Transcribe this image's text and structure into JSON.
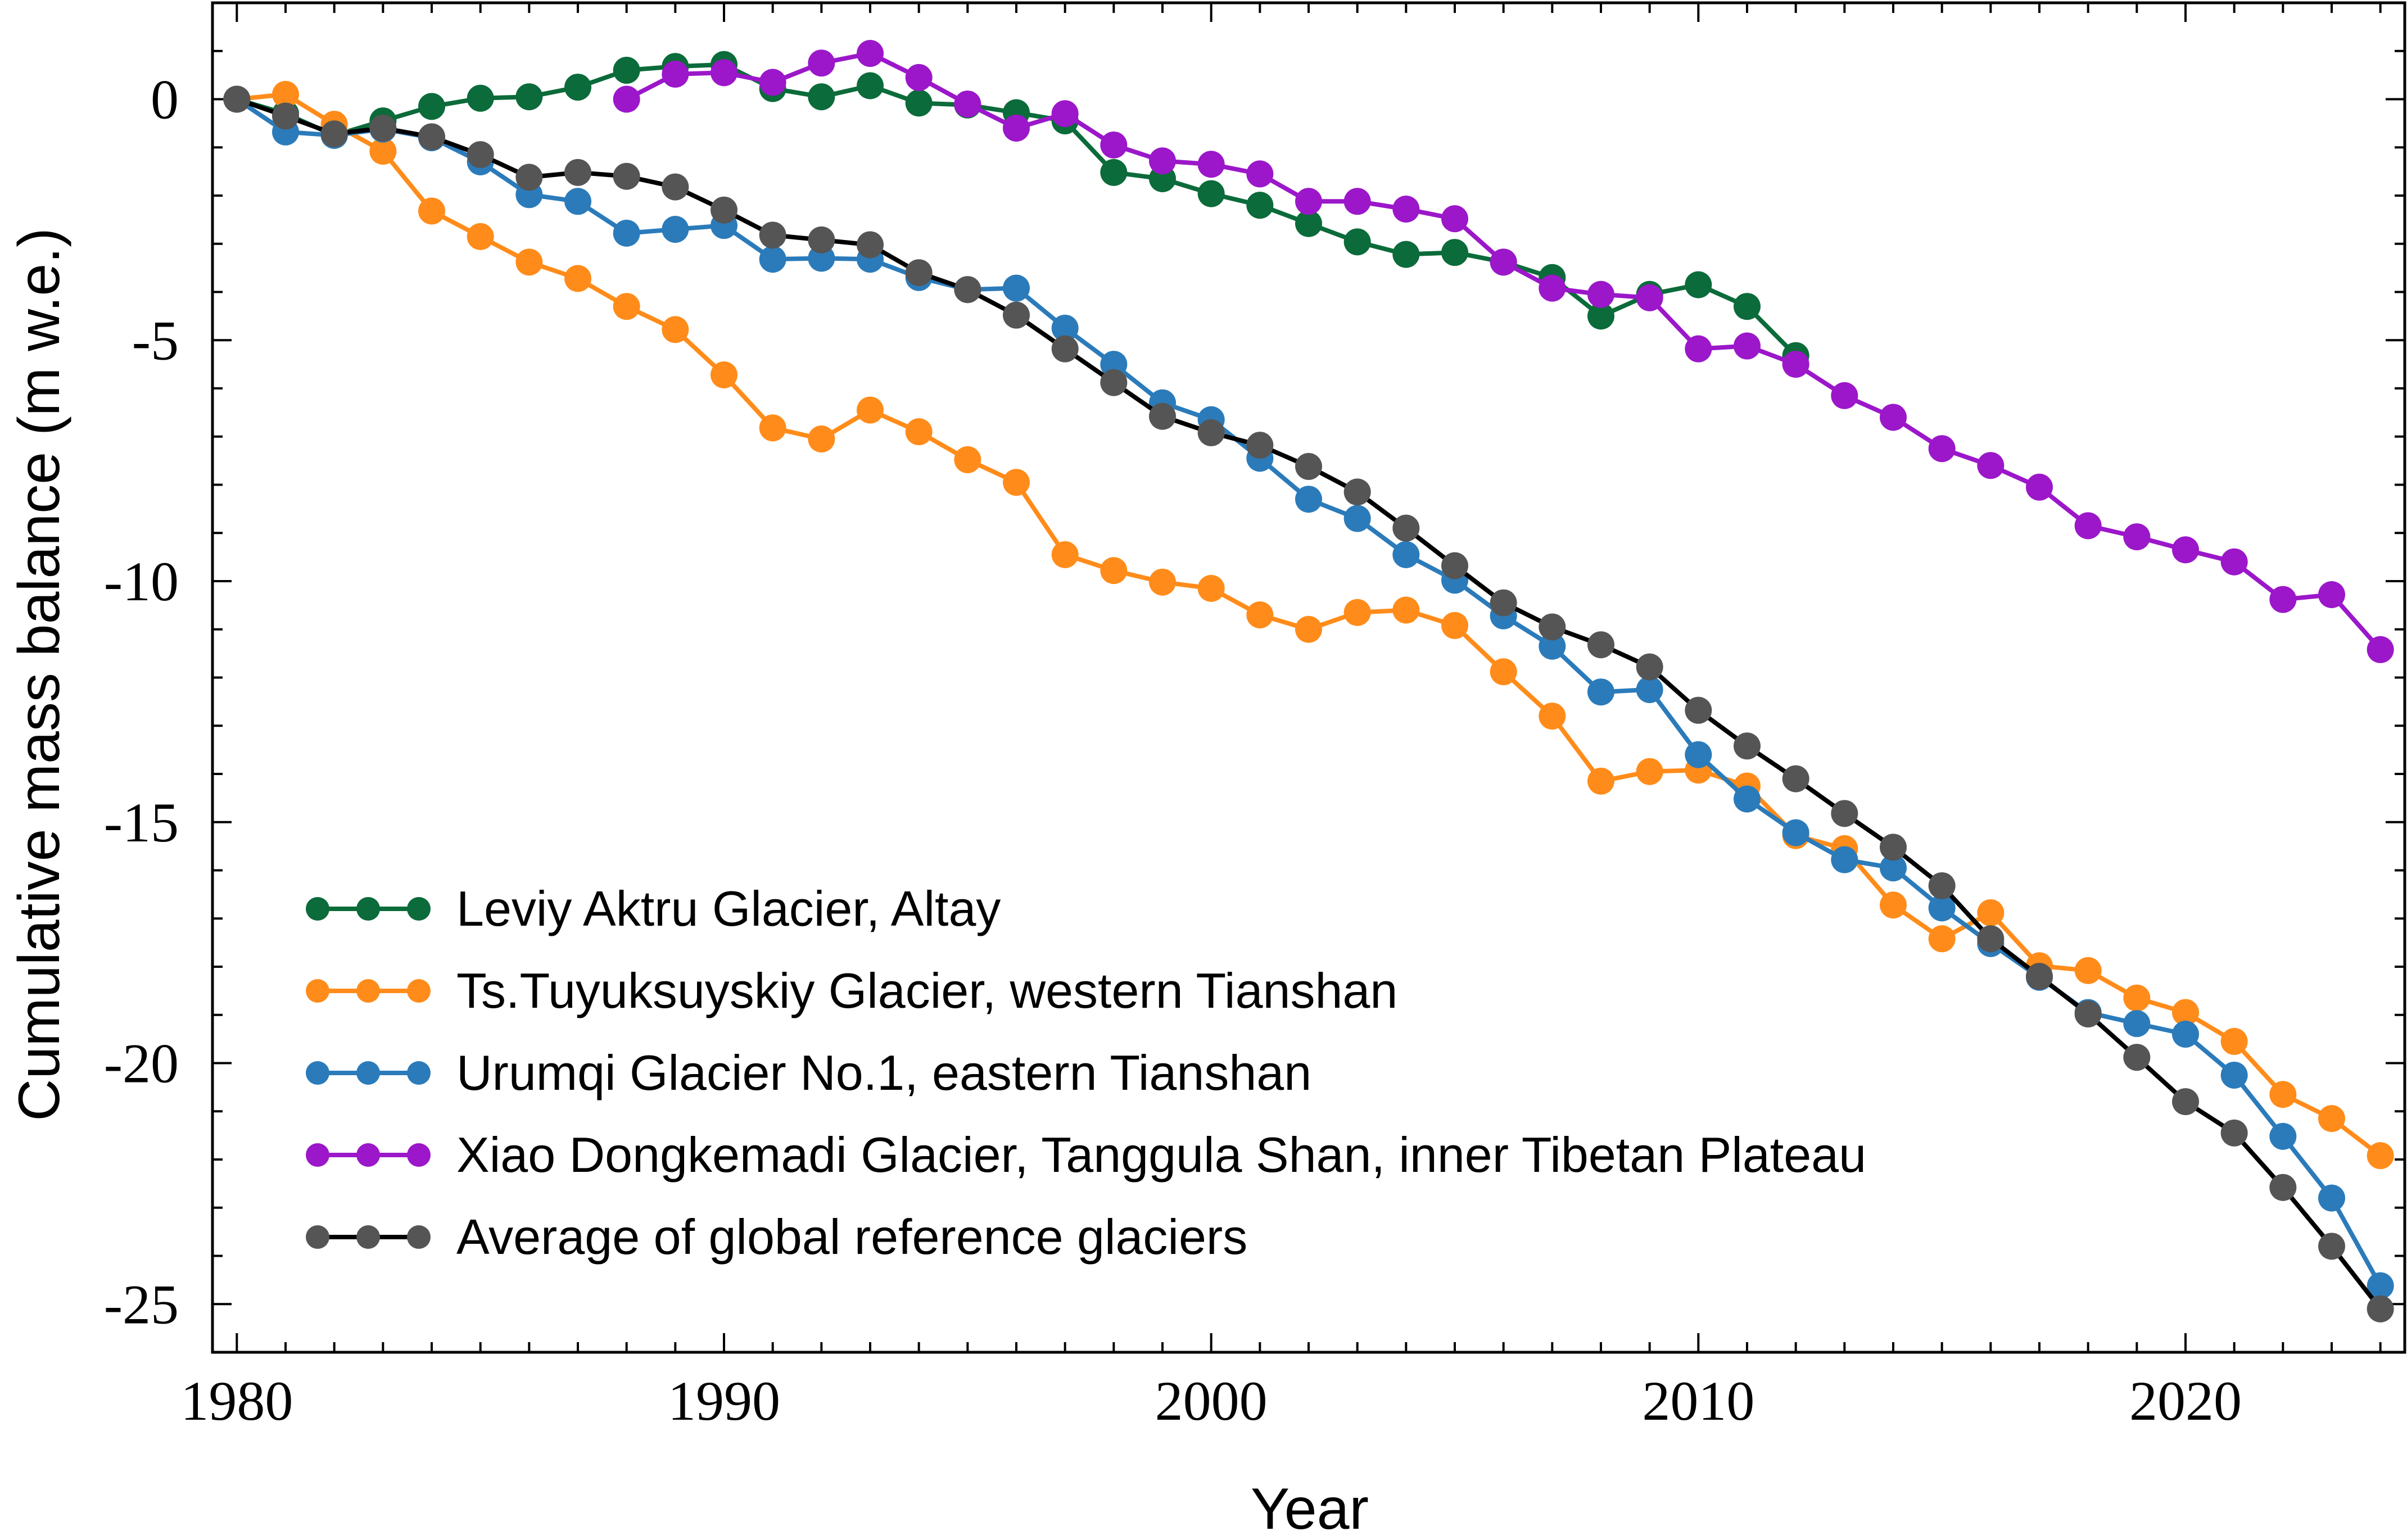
{
  "chart_data": {
    "type": "line",
    "title": "",
    "xlabel": "Year",
    "ylabel": "Cumulative mass balance (m w.e.)",
    "xlim": [
      1979.5,
      2024.5
    ],
    "ylim": [
      -26,
      2
    ],
    "x_ticks": [
      1980,
      1990,
      2000,
      2010,
      2020
    ],
    "x_tick_labels": [
      "1980",
      "1990",
      "2000",
      "2010",
      "2020"
    ],
    "y_ticks": [
      0,
      -5,
      -10,
      -15,
      -20,
      -25
    ],
    "y_tick_labels": [
      "0",
      "-5",
      "-10",
      "-15",
      "-20",
      "-25"
    ],
    "grid": false,
    "legend_position": "bottom-left",
    "series": [
      {
        "name": "Leviy Aktru Glacier, Altay",
        "color": "#0b6b3a",
        "x": [
          1980,
          1981,
          1982,
          1983,
          1984,
          1985,
          1986,
          1987,
          1988,
          1989,
          1990,
          1991,
          1992,
          1993,
          1994,
          1995,
          1996,
          1997,
          1998,
          1999,
          2000,
          2001,
          2002,
          2003,
          2004,
          2005,
          2006,
          2007,
          2008,
          2009,
          2010,
          2011,
          2012
        ],
        "y": [
          0,
          -0.3,
          -0.75,
          -0.45,
          -0.15,
          0.02,
          0.05,
          0.25,
          0.6,
          0.68,
          0.72,
          0.22,
          0.05,
          0.28,
          -0.08,
          -0.12,
          -0.28,
          -0.45,
          -1.52,
          -1.65,
          -1.96,
          -2.2,
          -2.58,
          -2.96,
          -3.22,
          -3.18,
          -3.38,
          -3.7,
          -4.5,
          -4.05,
          -3.85,
          -4.3,
          -5.32
        ]
      },
      {
        "name": "Ts.Tuyuksuyskiy Glacier, western Tianshan",
        "color": "#ff8c1a",
        "x": [
          1980,
          1981,
          1982,
          1983,
          1984,
          1985,
          1986,
          1987,
          1988,
          1989,
          1990,
          1991,
          1992,
          1993,
          1994,
          1995,
          1996,
          1997,
          1998,
          1999,
          2000,
          2001,
          2002,
          2003,
          2004,
          2005,
          2006,
          2007,
          2008,
          2009,
          2010,
          2011,
          2012,
          2013,
          2014,
          2015,
          2016,
          2017,
          2018,
          2019,
          2020,
          2021,
          2022,
          2023,
          2024
        ],
        "y": [
          0,
          0.1,
          -0.52,
          -1.08,
          -2.32,
          -2.85,
          -3.38,
          -3.72,
          -4.3,
          -4.78,
          -5.72,
          -6.82,
          -7.05,
          -6.45,
          -6.9,
          -7.48,
          -7.95,
          -9.45,
          -9.78,
          -10.02,
          -10.15,
          -10.7,
          -11.0,
          -10.65,
          -10.6,
          -10.92,
          -11.88,
          -12.8,
          -14.15,
          -13.95,
          -13.92,
          -14.25,
          -15.28,
          -15.55,
          -16.72,
          -17.42,
          -16.88,
          -17.98,
          -18.08,
          -18.65,
          -18.95,
          -19.55,
          -20.65,
          -21.15,
          -21.92
        ]
      },
      {
        "name": "Urumqi Glacier No.1, eastern Tianshan",
        "color": "#2b7bba",
        "x": [
          1980,
          1981,
          1982,
          1983,
          1984,
          1985,
          1986,
          1987,
          1988,
          1989,
          1990,
          1991,
          1992,
          1993,
          1994,
          1995,
          1996,
          1997,
          1998,
          1999,
          2000,
          2001,
          2002,
          2003,
          2004,
          2005,
          2006,
          2007,
          2008,
          2009,
          2010,
          2011,
          2012,
          2013,
          2014,
          2015,
          2016,
          2017,
          2018,
          2019,
          2020,
          2021,
          2022,
          2023,
          2024
        ],
        "y": [
          0,
          -0.68,
          -0.75,
          -0.62,
          -0.8,
          -1.3,
          -1.98,
          -2.12,
          -2.78,
          -2.7,
          -2.62,
          -3.32,
          -3.3,
          -3.32,
          -3.7,
          -3.95,
          -3.92,
          -4.75,
          -5.5,
          -6.3,
          -6.65,
          -7.45,
          -8.3,
          -8.7,
          -9.45,
          -9.98,
          -10.72,
          -11.35,
          -12.3,
          -12.25,
          -13.6,
          -14.52,
          -15.22,
          -15.78,
          -15.95,
          -16.78,
          -17.52,
          -18.22,
          -18.95,
          -19.18,
          -19.4,
          -20.25,
          -21.52,
          -22.8,
          -24.62
        ]
      },
      {
        "name": "Xiao Dongkemadi Glacier, Tanggula Shan, inner Tibetan Plateau",
        "color": "#9b17c9",
        "x": [
          1988,
          1989,
          1990,
          1991,
          1992,
          1993,
          1994,
          1995,
          1996,
          1997,
          1998,
          1999,
          2000,
          2001,
          2002,
          2003,
          2004,
          2005,
          2006,
          2007,
          2008,
          2009,
          2010,
          2011,
          2012,
          2013,
          2014,
          2015,
          2016,
          2017,
          2018,
          2019,
          2020,
          2021,
          2022,
          2023,
          2024
        ],
        "y": [
          0,
          0.52,
          0.55,
          0.35,
          0.75,
          0.95,
          0.45,
          -0.1,
          -0.6,
          -0.3,
          -0.95,
          -1.28,
          -1.35,
          -1.55,
          -2.12,
          -2.12,
          -2.28,
          -2.48,
          -3.38,
          -3.92,
          -4.05,
          -4.12,
          -5.18,
          -5.12,
          -5.5,
          -6.15,
          -6.6,
          -7.25,
          -7.6,
          -8.05,
          -8.85,
          -9.08,
          -9.35,
          -9.6,
          -10.38,
          -10.28,
          -11.42
        ]
      },
      {
        "name": "Average of global reference glaciers",
        "color": "#555555",
        "x": [
          1980,
          1981,
          1982,
          1983,
          1984,
          1985,
          1986,
          1987,
          1988,
          1989,
          1990,
          1991,
          1992,
          1993,
          1994,
          1995,
          1996,
          1997,
          1998,
          1999,
          2000,
          2001,
          2002,
          2003,
          2004,
          2005,
          2006,
          2007,
          2008,
          2009,
          2010,
          2011,
          2012,
          2013,
          2014,
          2015,
          2016,
          2017,
          2018,
          2019,
          2020,
          2021,
          2022,
          2023,
          2024
        ],
        "y": [
          0,
          -0.35,
          -0.72,
          -0.6,
          -0.78,
          -1.15,
          -1.62,
          -1.52,
          -1.6,
          -1.82,
          -2.3,
          -2.82,
          -2.92,
          -3.02,
          -3.6,
          -3.95,
          -4.48,
          -5.18,
          -5.88,
          -6.58,
          -6.92,
          -7.18,
          -7.62,
          -8.15,
          -8.9,
          -9.68,
          -10.45,
          -10.95,
          -11.32,
          -11.78,
          -12.68,
          -13.42,
          -14.1,
          -14.82,
          -15.52,
          -16.32,
          -17.42,
          -18.2,
          -18.98,
          -19.88,
          -20.8,
          -21.45,
          -22.58,
          -23.8,
          -25.1
        ]
      }
    ]
  }
}
